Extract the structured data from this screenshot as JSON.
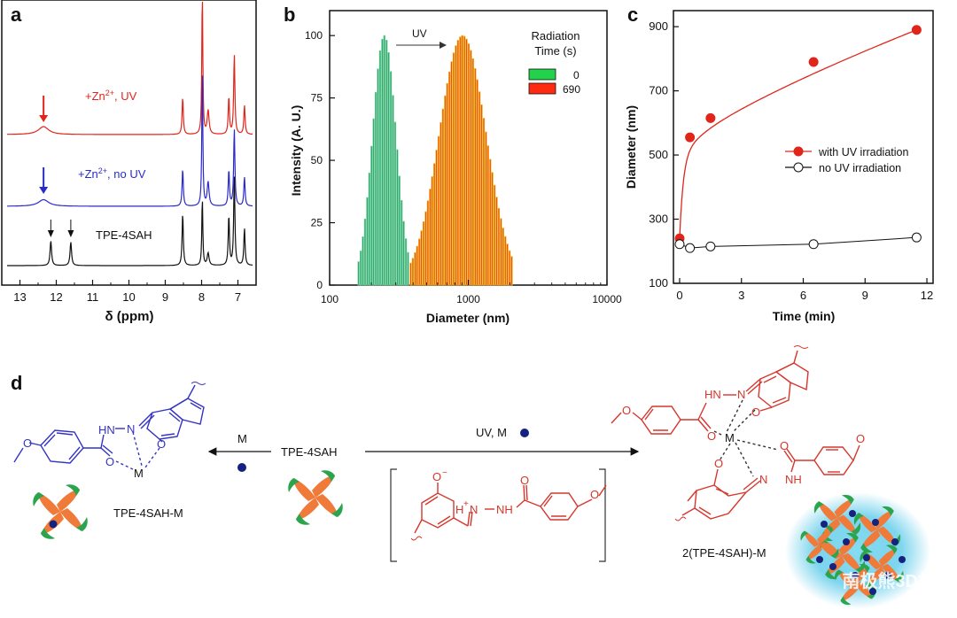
{
  "panel_letters": {
    "a": "a",
    "b": "b",
    "c": "c",
    "d": "d"
  },
  "colors": {
    "red": "#e0251b",
    "blue": "#2a2acb",
    "black": "#111111",
    "green_bar": "#1f8f63",
    "red_bar": "#e52a16",
    "orange_edge": "#f2b11c",
    "scheme_red": "#d6362c",
    "scheme_blue": "#3434c2",
    "navy_dot": "#15237e",
    "orange_arm": "#f07a3a",
    "green_arm": "#2aa54e",
    "glow": "#52c7e8"
  },
  "chart_data": [
    {
      "type": "line",
      "panel": "a",
      "title": "",
      "xlabel": "δ (ppm)",
      "xlim": [
        13.5,
        6.5
      ],
      "x_reversed": true,
      "x_ticks": [
        "13",
        "12",
        "11",
        "10",
        "9",
        "8",
        "7"
      ],
      "x_tick_values": [
        13,
        12,
        11,
        10,
        9,
        8,
        7
      ],
      "series": [
        {
          "name": "+Zn²⁺, UV",
          "label_main": "+Zn",
          "label_sup": "2+",
          "label_tail": ", UV",
          "color": "#e0251b",
          "peaks": [
            {
              "ppm": 12.35,
              "height": 0.06,
              "width": 0.17
            },
            {
              "ppm": 8.52,
              "height": 0.28,
              "width": 0.02
            },
            {
              "ppm": 7.98,
              "height": 1.1,
              "width": 0.016
            },
            {
              "ppm": 7.82,
              "height": 0.18,
              "width": 0.03
            },
            {
              "ppm": 7.25,
              "height": 0.28,
              "width": 0.02
            },
            {
              "ppm": 7.1,
              "height": 0.6,
              "width": 0.02
            },
            {
              "ppm": 6.82,
              "height": 0.22,
              "width": 0.02
            }
          ],
          "arrow_ppm": 12.35
        },
        {
          "name": "+Zn²⁺, no UV",
          "label_main": "+Zn",
          "label_sup": "2+",
          "label_tail": ", no UV",
          "color": "#2a2acb",
          "peaks": [
            {
              "ppm": 12.35,
              "height": 0.05,
              "width": 0.17
            },
            {
              "ppm": 8.52,
              "height": 0.28,
              "width": 0.02
            },
            {
              "ppm": 7.98,
              "height": 1.05,
              "width": 0.016
            },
            {
              "ppm": 7.82,
              "height": 0.18,
              "width": 0.03
            },
            {
              "ppm": 7.25,
              "height": 0.27,
              "width": 0.02
            },
            {
              "ppm": 7.1,
              "height": 0.58,
              "width": 0.02
            },
            {
              "ppm": 6.82,
              "height": 0.22,
              "width": 0.02
            }
          ],
          "arrow_ppm": 12.35
        },
        {
          "name": "TPE-4SAH",
          "label_main": "TPE-4SAH",
          "label_sup": "",
          "label_tail": "",
          "color": "#111111",
          "peaks": [
            {
              "ppm": 12.15,
              "height": 0.2,
              "width": 0.025
            },
            {
              "ppm": 11.6,
              "height": 0.19,
              "width": 0.025
            },
            {
              "ppm": 8.52,
              "height": 0.42,
              "width": 0.02
            },
            {
              "ppm": 7.98,
              "height": 0.55,
              "width": 0.016
            },
            {
              "ppm": 7.82,
              "height": 0.1,
              "width": 0.03
            },
            {
              "ppm": 7.25,
              "height": 0.4,
              "width": 0.02
            },
            {
              "ppm": 7.1,
              "height": 0.72,
              "width": 0.02
            },
            {
              "ppm": 6.82,
              "height": 0.3,
              "width": 0.02
            }
          ],
          "arrow_ppms": [
            12.15,
            11.6
          ]
        }
      ]
    },
    {
      "type": "bar",
      "panel": "b",
      "title": "",
      "xlabel": "Diameter (nm)",
      "ylabel": "Intensity (A. U.)",
      "x_scale": "log",
      "xlim": [
        100,
        10000
      ],
      "ylim": [
        0,
        110
      ],
      "x_ticks": [
        "100",
        "1000",
        "10000"
      ],
      "x_tick_values": [
        100,
        1000,
        10000
      ],
      "y_ticks": [
        "0",
        "25",
        "50",
        "75",
        "100"
      ],
      "y_tick_values": [
        0,
        25,
        50,
        75,
        100
      ],
      "legend_title_line1": "Radiation",
      "legend_title_line2": "Time (s)",
      "legend_position": "top-right",
      "annotation": "UV",
      "series": [
        {
          "name": "0",
          "color": "#1f8f63",
          "legend_color": "#22d24a",
          "edge": "#6fd39a",
          "center": 245,
          "sigma_log": 0.085,
          "range": [
            160,
            370
          ]
        },
        {
          "name": "690",
          "color": "#e52a16",
          "legend_color": "#ff2a0f",
          "edge": "#f2b11c",
          "center": 900,
          "sigma_log": 0.17,
          "range": [
            380,
            2100
          ]
        }
      ]
    },
    {
      "type": "scatter",
      "panel": "c",
      "title": "",
      "xlabel": "Time (min)",
      "ylabel": "Diameter (nm)",
      "xlim": [
        -0.3,
        12.3
      ],
      "ylim": [
        100,
        950
      ],
      "x_ticks": [
        "0",
        "3",
        "6",
        "9",
        "12"
      ],
      "x_tick_values": [
        0,
        3,
        6,
        9,
        12
      ],
      "y_ticks": [
        "100",
        "300",
        "500",
        "700",
        "900"
      ],
      "y_tick_values": [
        100,
        300,
        500,
        700,
        900
      ],
      "legend_position": "right",
      "series": [
        {
          "name": "with UV irradiation",
          "color": "#e0251b",
          "filled": true,
          "x": [
            0,
            0.5,
            1.5,
            6.5,
            11.5
          ],
          "y": [
            240,
            555,
            615,
            790,
            890
          ]
        },
        {
          "name": "no UV irradiation",
          "color": "#111111",
          "filled": false,
          "x": [
            0,
            0.5,
            1.5,
            6.5,
            11.5
          ],
          "y": [
            222,
            210,
            215,
            222,
            243
          ]
        }
      ]
    }
  ],
  "scheme": {
    "left_label": "TPE-4SAH-M",
    "center_label": "TPE-4SAH",
    "right_label": "2(TPE-4SAH)-M",
    "arrow_left_label": "M",
    "arrow_right_label": "UV, M",
    "atoms": {
      "o": "O",
      "hn": "HN",
      "n": "N",
      "hn2": "HN",
      "nh": "NH",
      "m": "M",
      "h_plus": "H",
      "plus": "+",
      "o_minus": "O",
      "minus": "−"
    }
  },
  "watermark": "南极熊3D打印"
}
